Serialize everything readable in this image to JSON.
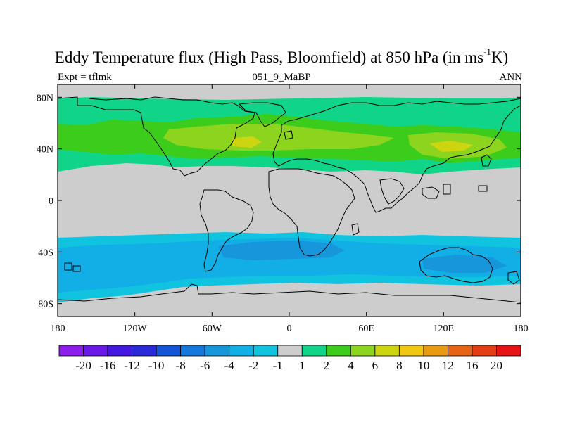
{
  "title": {
    "main": "Eddy Temperature flux (High Pass, Bloomfield) at 850 hPa (in ms",
    "sup": "-1",
    "end": "K)"
  },
  "subtitle": {
    "left": "Expt = tflmk",
    "center": "051_9_MaBP",
    "right": "ANN"
  },
  "axes": {
    "lon_labels": [
      "180",
      "120W",
      "60W",
      "0",
      "60E",
      "120E",
      "180"
    ],
    "lon_values": [
      -180,
      -120,
      -60,
      0,
      60,
      120,
      180
    ],
    "lat_labels": [
      "80N",
      "40N",
      "0",
      "40S",
      "80S"
    ],
    "lat_values": [
      80,
      40,
      0,
      -40,
      -80
    ],
    "lon_range": [
      -180,
      180
    ],
    "lat_range": [
      90,
      -90
    ]
  },
  "colorbar": {
    "labels": [
      "-20",
      "-16",
      "-12",
      "-10",
      "-8",
      "-6",
      "-4",
      "-2",
      "-1",
      "1",
      "2",
      "4",
      "6",
      "8",
      "10",
      "12",
      "16",
      "20"
    ],
    "colors": [
      "#8c1eeb",
      "#6a1ae6",
      "#4418e0",
      "#2a2ad8",
      "#1455d8",
      "#1478dc",
      "#1896dc",
      "#12aee6",
      "#10c4e0",
      "#cdcdcd",
      "#10d488",
      "#3ccc1c",
      "#8cd41e",
      "#cdd410",
      "#f0c814",
      "#e89a10",
      "#e66414",
      "#e43c14",
      "#e61414"
    ]
  },
  "map_colors": {
    "background": "#cdcdcd",
    "pos_light": "#10d488",
    "pos_mid": "#3ccc1c",
    "pos_strong": "#8cd41e",
    "pos_max": "#cdd410",
    "neg_light": "#10c4e0",
    "neg_mid": "#12aee6",
    "neg_strong": "#1896dc"
  }
}
